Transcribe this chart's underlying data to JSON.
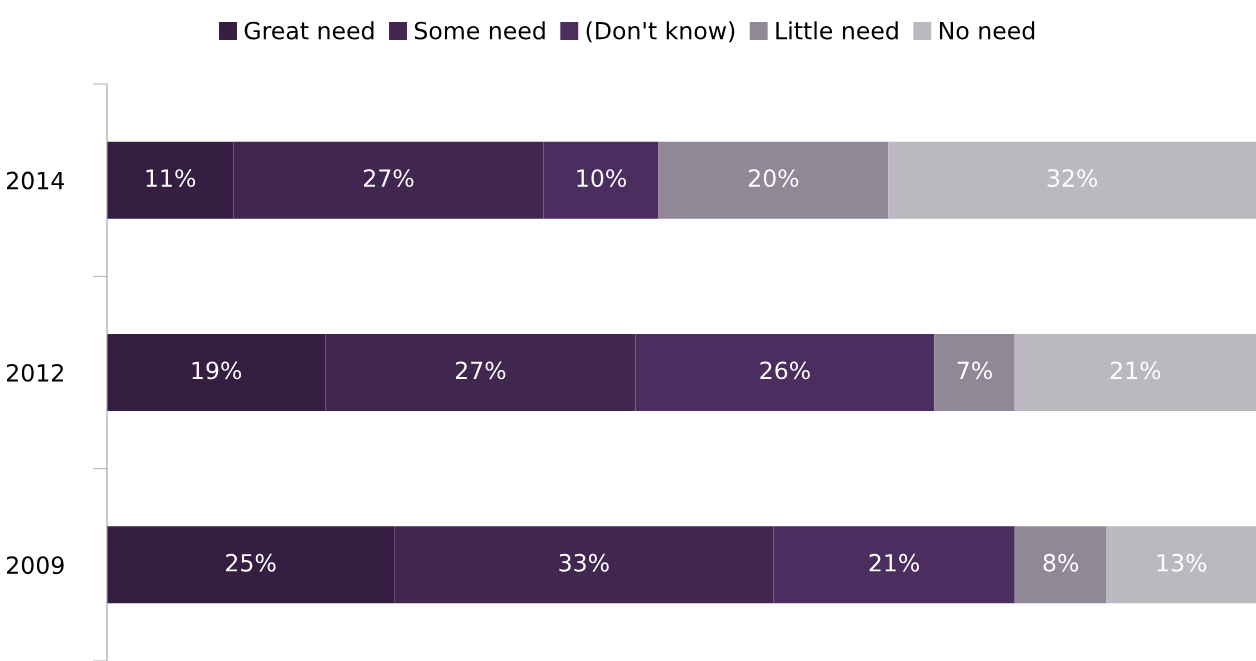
{
  "chart_data": {
    "type": "bar",
    "orientation": "horizontal",
    "stacked": true,
    "legend": "top",
    "categories": [
      "2014",
      "2012",
      "2009"
    ],
    "series": [
      {
        "name": "Great need",
        "color": "#361e42",
        "values": [
          11,
          19,
          25
        ],
        "value_labels": [
          "11%",
          "19%",
          "25%"
        ]
      },
      {
        "name": "Some need",
        "color": "#41274f",
        "values": [
          27,
          27,
          33
        ],
        "value_labels": [
          "27%",
          "27%",
          "33%"
        ]
      },
      {
        "name": "(Don't know)",
        "color": "#4b2d5f",
        "values": [
          10,
          26,
          21
        ],
        "value_labels": [
          "10%",
          "26%",
          "21%"
        ]
      },
      {
        "name": "Little need",
        "color": "#918897",
        "values": [
          20,
          7,
          8
        ],
        "value_labels": [
          "20%",
          "7%",
          "8%"
        ]
      },
      {
        "name": "No need",
        "color": "#bcb8bf",
        "values": [
          32,
          21,
          13
        ],
        "value_labels": [
          "32%",
          "21%",
          "13%"
        ]
      }
    ]
  }
}
